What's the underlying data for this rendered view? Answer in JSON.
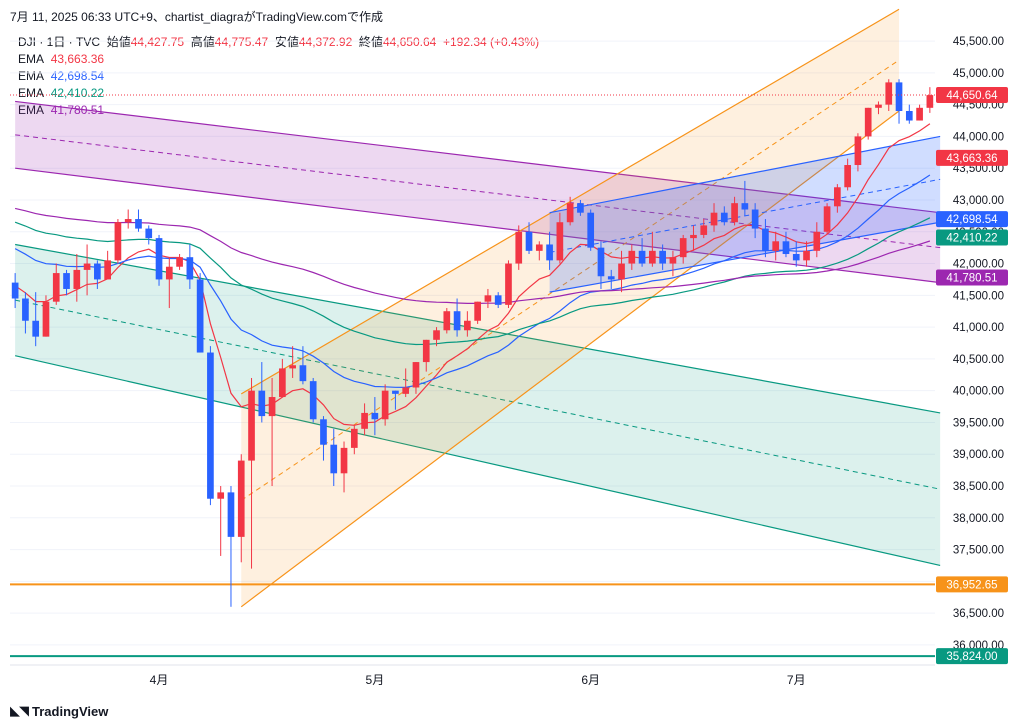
{
  "header": {
    "timestamp": "7月 11, 2025 06:33 UTC+9、chartist_diagraがTradingView.comで作成"
  },
  "legend": {
    "symbol": "DJI · 1日 · TVC",
    "open_label": "始値",
    "open": "44,427.75",
    "high_label": "高値",
    "high": "44,775.47",
    "low_label": "安値",
    "low": "44,372.92",
    "close_label": "終値",
    "close": "44,650.64",
    "change": "+192.34 (+0.43%)",
    "ema": [
      {
        "label": "EMA",
        "value": "43,663.36",
        "color": "#f23645"
      },
      {
        "label": "EMA",
        "value": "42,698.54",
        "color": "#2962ff"
      },
      {
        "label": "EMA",
        "value": "42,410.22",
        "color": "#089981"
      },
      {
        "label": "EMA",
        "value": "41,780.51",
        "color": "#9c27b0"
      }
    ]
  },
  "brand": {
    "name": "TradingView"
  },
  "chart_data": {
    "type": "candlestick",
    "symbol": "DJI",
    "interval": "1日",
    "y_axis": {
      "min": 35700,
      "max": 45800,
      "ticks": [
        36000,
        36500,
        37000,
        37500,
        38000,
        38500,
        39000,
        39500,
        40000,
        40500,
        41000,
        41500,
        42000,
        42500,
        43000,
        43500,
        44000,
        44500,
        45000,
        45500
      ],
      "tick_labels": [
        "36,000.00",
        "36,500.00",
        "37,000.00",
        "37,500.00",
        "38,000.00",
        "38,500.00",
        "39,000.00",
        "39,500.00",
        "40,000.00",
        "40,500.00",
        "41,000.00",
        "41,500.00",
        "42,000.00",
        "42,500.00",
        "43,000.00",
        "43,500.00",
        "44,000.00",
        "44,500.00",
        "45,000.00",
        "45,500.00"
      ]
    },
    "x_axis": {
      "labels": [
        {
          "text": "4月",
          "index": 14
        },
        {
          "text": "5月",
          "index": 35
        },
        {
          "text": "6月",
          "index": 56
        },
        {
          "text": "7月",
          "index": 76
        }
      ],
      "bar_count": 90
    },
    "price_tags": [
      {
        "value": 44650.64,
        "label": "44,650.64",
        "color": "#f23645"
      },
      {
        "value": 43663.36,
        "label": "43,663.36",
        "color": "#f23645"
      },
      {
        "value": 42698.54,
        "label": "42,698.54",
        "color": "#2962ff"
      },
      {
        "value": 42410.22,
        "label": "42,410.22",
        "color": "#089981"
      },
      {
        "value": 41780.51,
        "label": "41,780.51",
        "color": "#9c27b0"
      },
      {
        "value": 36952.65,
        "label": "36,952.65",
        "color": "#f7931a"
      },
      {
        "value": 35824.0,
        "label": "35,824.00",
        "color": "#089981"
      }
    ],
    "horizontal_lines": [
      {
        "value": 36952.65,
        "color": "#f7931a"
      },
      {
        "value": 35824.0,
        "color": "#089981"
      }
    ],
    "candles": [
      [
        41700,
        41850,
        41300,
        41450
      ],
      [
        41450,
        41550,
        40900,
        41100
      ],
      [
        41100,
        41550,
        40700,
        40850
      ],
      [
        40850,
        41500,
        40850,
        41400
      ],
      [
        41400,
        42000,
        41350,
        41850
      ],
      [
        41850,
        41900,
        41500,
        41600
      ],
      [
        41600,
        42150,
        41400,
        41900
      ],
      [
        41900,
        42300,
        41500,
        42000
      ],
      [
        42000,
        42050,
        41600,
        41750
      ],
      [
        41750,
        42200,
        41750,
        42050
      ],
      [
        42050,
        42700,
        42000,
        42650
      ],
      [
        42650,
        42850,
        42550,
        42700
      ],
      [
        42700,
        42850,
        42500,
        42550
      ],
      [
        42550,
        42600,
        42300,
        42400
      ],
      [
        42400,
        42450,
        41650,
        41750
      ],
      [
        41750,
        42100,
        41300,
        41950
      ],
      [
        41950,
        42150,
        41900,
        42100
      ],
      [
        42100,
        42300,
        41600,
        41750
      ],
      [
        41750,
        41850,
        40600,
        40600
      ],
      [
        40600,
        40700,
        38200,
        38300
      ],
      [
        38300,
        38500,
        37400,
        38400
      ],
      [
        38400,
        38500,
        36600,
        37700
      ],
      [
        37700,
        39000,
        37300,
        38900
      ],
      [
        38900,
        40200,
        37200,
        40000
      ],
      [
        40000,
        40450,
        39500,
        39600
      ],
      [
        39600,
        40200,
        38500,
        39900
      ],
      [
        39900,
        40500,
        39900,
        40350
      ],
      [
        40350,
        40700,
        40200,
        40400
      ],
      [
        40400,
        40700,
        40100,
        40150
      ],
      [
        40150,
        40200,
        39500,
        39550
      ],
      [
        39550,
        39600,
        38900,
        39150
      ],
      [
        39150,
        39400,
        38500,
        38700
      ],
      [
        38700,
        39200,
        38400,
        39100
      ],
      [
        39100,
        39450,
        39000,
        39400
      ],
      [
        39400,
        39800,
        39300,
        39650
      ],
      [
        39650,
        39900,
        39300,
        39550
      ],
      [
        39550,
        40100,
        39450,
        40000
      ],
      [
        40000,
        40000,
        39700,
        39950
      ],
      [
        39950,
        40350,
        39900,
        40050
      ],
      [
        40050,
        40450,
        39950,
        40450
      ],
      [
        40450,
        40800,
        40300,
        40800
      ],
      [
        40800,
        41000,
        40700,
        40950
      ],
      [
        40950,
        41300,
        40900,
        41250
      ],
      [
        41250,
        41450,
        40850,
        40950
      ],
      [
        40950,
        41250,
        40850,
        41100
      ],
      [
        41100,
        41400,
        41050,
        41400
      ],
      [
        41400,
        41600,
        41300,
        41500
      ],
      [
        41500,
        41550,
        41300,
        41350
      ],
      [
        41350,
        42050,
        41300,
        42000
      ],
      [
        42000,
        42600,
        41900,
        42500
      ],
      [
        42500,
        42650,
        42150,
        42200
      ],
      [
        42200,
        42350,
        42050,
        42300
      ],
      [
        42300,
        42500,
        41900,
        42050
      ],
      [
        42050,
        42800,
        42000,
        42650
      ],
      [
        42650,
        43050,
        42600,
        42950
      ],
      [
        42950,
        43000,
        42750,
        42800
      ],
      [
        42800,
        42850,
        42200,
        42250
      ],
      [
        42250,
        42350,
        41600,
        41800
      ],
      [
        41800,
        41900,
        41600,
        41750
      ],
      [
        41750,
        42200,
        41550,
        42000
      ],
      [
        42000,
        42300,
        41900,
        42200
      ],
      [
        42200,
        42400,
        41950,
        42000
      ],
      [
        42000,
        42500,
        41950,
        42200
      ],
      [
        42200,
        42300,
        41900,
        42000
      ],
      [
        42000,
        42200,
        41800,
        42100
      ],
      [
        42100,
        42450,
        42000,
        42400
      ],
      [
        42400,
        42600,
        42200,
        42450
      ],
      [
        42450,
        42700,
        42400,
        42600
      ],
      [
        42600,
        42950,
        42500,
        42800
      ],
      [
        42800,
        42900,
        42600,
        42650
      ],
      [
        42650,
        43050,
        42600,
        42950
      ],
      [
        42950,
        43300,
        42750,
        42850
      ],
      [
        42850,
        42950,
        42400,
        42550
      ],
      [
        42550,
        42700,
        42100,
        42200
      ],
      [
        42200,
        42500,
        42050,
        42350
      ],
      [
        42350,
        42500,
        42100,
        42150
      ],
      [
        42150,
        42350,
        41950,
        42050
      ],
      [
        42050,
        42350,
        41950,
        42200
      ],
      [
        42200,
        42650,
        42100,
        42500
      ],
      [
        42500,
        42950,
        42450,
        42900
      ],
      [
        42900,
        43250,
        42800,
        43200
      ],
      [
        43200,
        43650,
        43150,
        43550
      ],
      [
        43550,
        44050,
        43450,
        44000
      ],
      [
        44000,
        44450,
        43950,
        44450
      ],
      [
        44450,
        44550,
        44350,
        44500
      ],
      [
        44500,
        44900,
        44400,
        44850
      ],
      [
        44850,
        44900,
        44200,
        44400
      ],
      [
        44400,
        44500,
        44200,
        44250
      ],
      [
        44250,
        44500,
        44250,
        44450
      ],
      [
        44450,
        44775,
        44370,
        44650
      ]
    ],
    "ema_series": [
      {
        "name": "EMA",
        "color": "#f23645",
        "period_note": "",
        "values_hint": "fast"
      },
      {
        "name": "EMA",
        "color": "#2962ff",
        "values_hint": "medium"
      },
      {
        "name": "EMA",
        "color": "#089981",
        "values_hint": "slow"
      },
      {
        "name": "EMA",
        "color": "#9c27b0",
        "values_hint": "slowest"
      }
    ],
    "channels": [
      {
        "name": "",
        "color": "#9c27b0",
        "fill": "rgba(156,39,176,0.18)",
        "upper": [
          [
            0,
            44550
          ],
          [
            90,
            42800
          ]
        ],
        "lower": [
          [
            0,
            43500
          ],
          [
            90,
            41700
          ]
        ]
      },
      {
        "name": "",
        "color": "#089981",
        "fill": "rgba(8,153,129,0.14)",
        "upper": [
          [
            0,
            42300
          ],
          [
            90,
            39650
          ]
        ],
        "lower": [
          [
            0,
            40550
          ],
          [
            90,
            37250
          ]
        ]
      },
      {
        "name": "",
        "color": "#f7931a",
        "fill": "rgba(247,147,26,0.14)",
        "upper": [
          [
            22,
            39950
          ],
          [
            86,
            46000
          ]
        ],
        "lower": [
          [
            22,
            36600
          ],
          [
            86,
            44400
          ]
        ]
      },
      {
        "name": "",
        "color": "#2962ff",
        "fill": "rgba(41,98,255,0.22)",
        "upper": [
          [
            52,
            42800
          ],
          [
            90,
            44000
          ]
        ],
        "lower": [
          [
            52,
            41550
          ],
          [
            90,
            42650
          ]
        ]
      }
    ]
  }
}
